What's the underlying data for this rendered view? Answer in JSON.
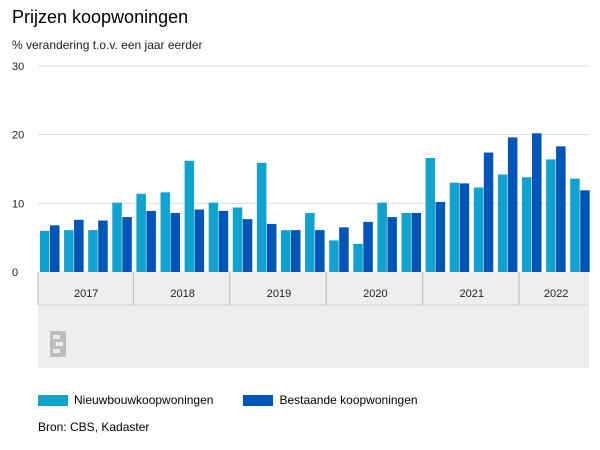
{
  "header": {
    "title": "Prijzen koopwoningen",
    "subtitle": "% verandering t.o.v. een jaar eerder"
  },
  "logo": {
    "text": "cbs"
  },
  "source": "Bron: CBS, Kadaster",
  "colors": {
    "series1": "#11a3cf",
    "series2": "#0055b8",
    "grid": "#dddddd",
    "axis_band": "#eeeeee"
  },
  "chart_data": {
    "type": "bar",
    "title": "Prijzen koopwoningen",
    "subtitle": "% verandering t.o.v. een jaar eerder",
    "ylim": [
      0,
      30
    ],
    "yticks": [
      0,
      10,
      20,
      30
    ],
    "grid": true,
    "legend_position": "bottom",
    "categories": [
      "2017 Q1",
      "2017 Q2",
      "2017 Q3",
      "2017 Q4",
      "2018 Q1",
      "2018 Q2",
      "2018 Q3",
      "2018 Q4",
      "2019 Q1",
      "2019 Q2",
      "2019 Q3",
      "2019 Q4",
      "2020 Q1",
      "2020 Q2",
      "2020 Q3",
      "2020 Q4",
      "2021 Q1",
      "2021 Q2",
      "2021 Q3",
      "2021 Q4",
      "2022 Q1",
      "2022 Q2",
      "2022 Q3"
    ],
    "year_labels": [
      "2017",
      "2018",
      "2019",
      "2020",
      "2021",
      "2022"
    ],
    "series": [
      {
        "name": "Nieuwbouwkoopwoningen",
        "values": [
          6.0,
          6.1,
          6.1,
          10.1,
          11.4,
          11.6,
          16.2,
          10.1,
          9.4,
          15.9,
          6.1,
          8.6,
          4.6,
          4.1,
          10.1,
          8.6,
          16.6,
          13.0,
          12.3,
          14.2,
          13.8,
          16.4,
          13.6
        ]
      },
      {
        "name": "Bestaande koopwoningen",
        "values": [
          6.8,
          7.6,
          7.5,
          8.0,
          8.9,
          8.6,
          9.1,
          8.9,
          7.7,
          7.0,
          6.1,
          6.1,
          6.5,
          7.3,
          8.0,
          8.6,
          10.2,
          12.9,
          17.4,
          19.6,
          20.2,
          18.3,
          11.9
        ]
      }
    ]
  }
}
